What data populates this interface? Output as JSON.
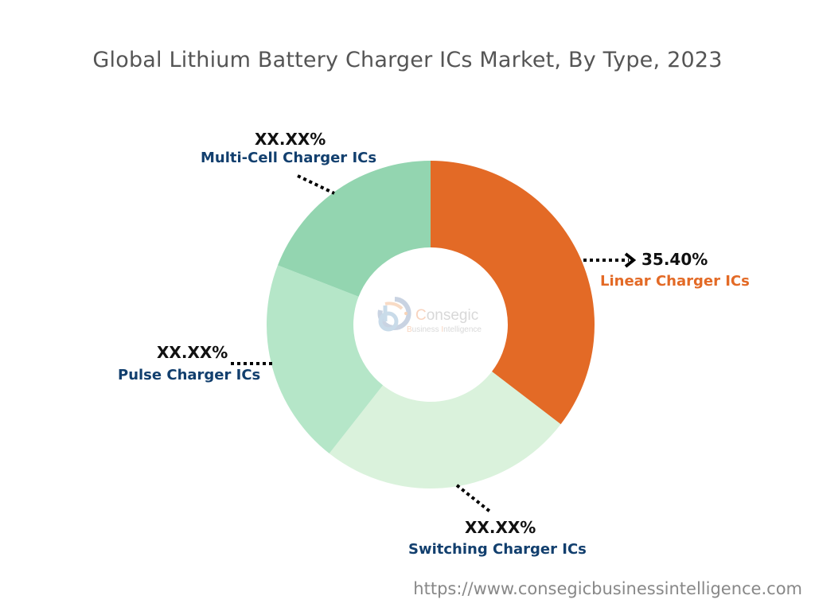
{
  "chart_data": {
    "type": "pie",
    "donut": true,
    "title": "Global Lithium Battery Charger ICs Market, By Type, 2023",
    "categories": [
      "Linear Charger ICs",
      "Switching Charger ICs",
      "Pulse Charger ICs",
      "Multi-Cell Charger ICs"
    ],
    "values": [
      35.4,
      25.2,
      20.3,
      19.1
    ],
    "value_labels": [
      "35.40%",
      "XX.XX%",
      "XX.XX%",
      "XX.XX%"
    ],
    "colors": [
      "#E36A26",
      "#DAF2DC",
      "#B5E6C8",
      "#93D5B0"
    ],
    "label_colors": [
      "#E36A26",
      "#123f6e",
      "#123f6e",
      "#123f6e"
    ]
  },
  "watermark": {
    "brand": "Consegic",
    "subtitle": "Business Intelligence"
  },
  "footer_url": "https://www.consegicbusinessintelligence.com"
}
